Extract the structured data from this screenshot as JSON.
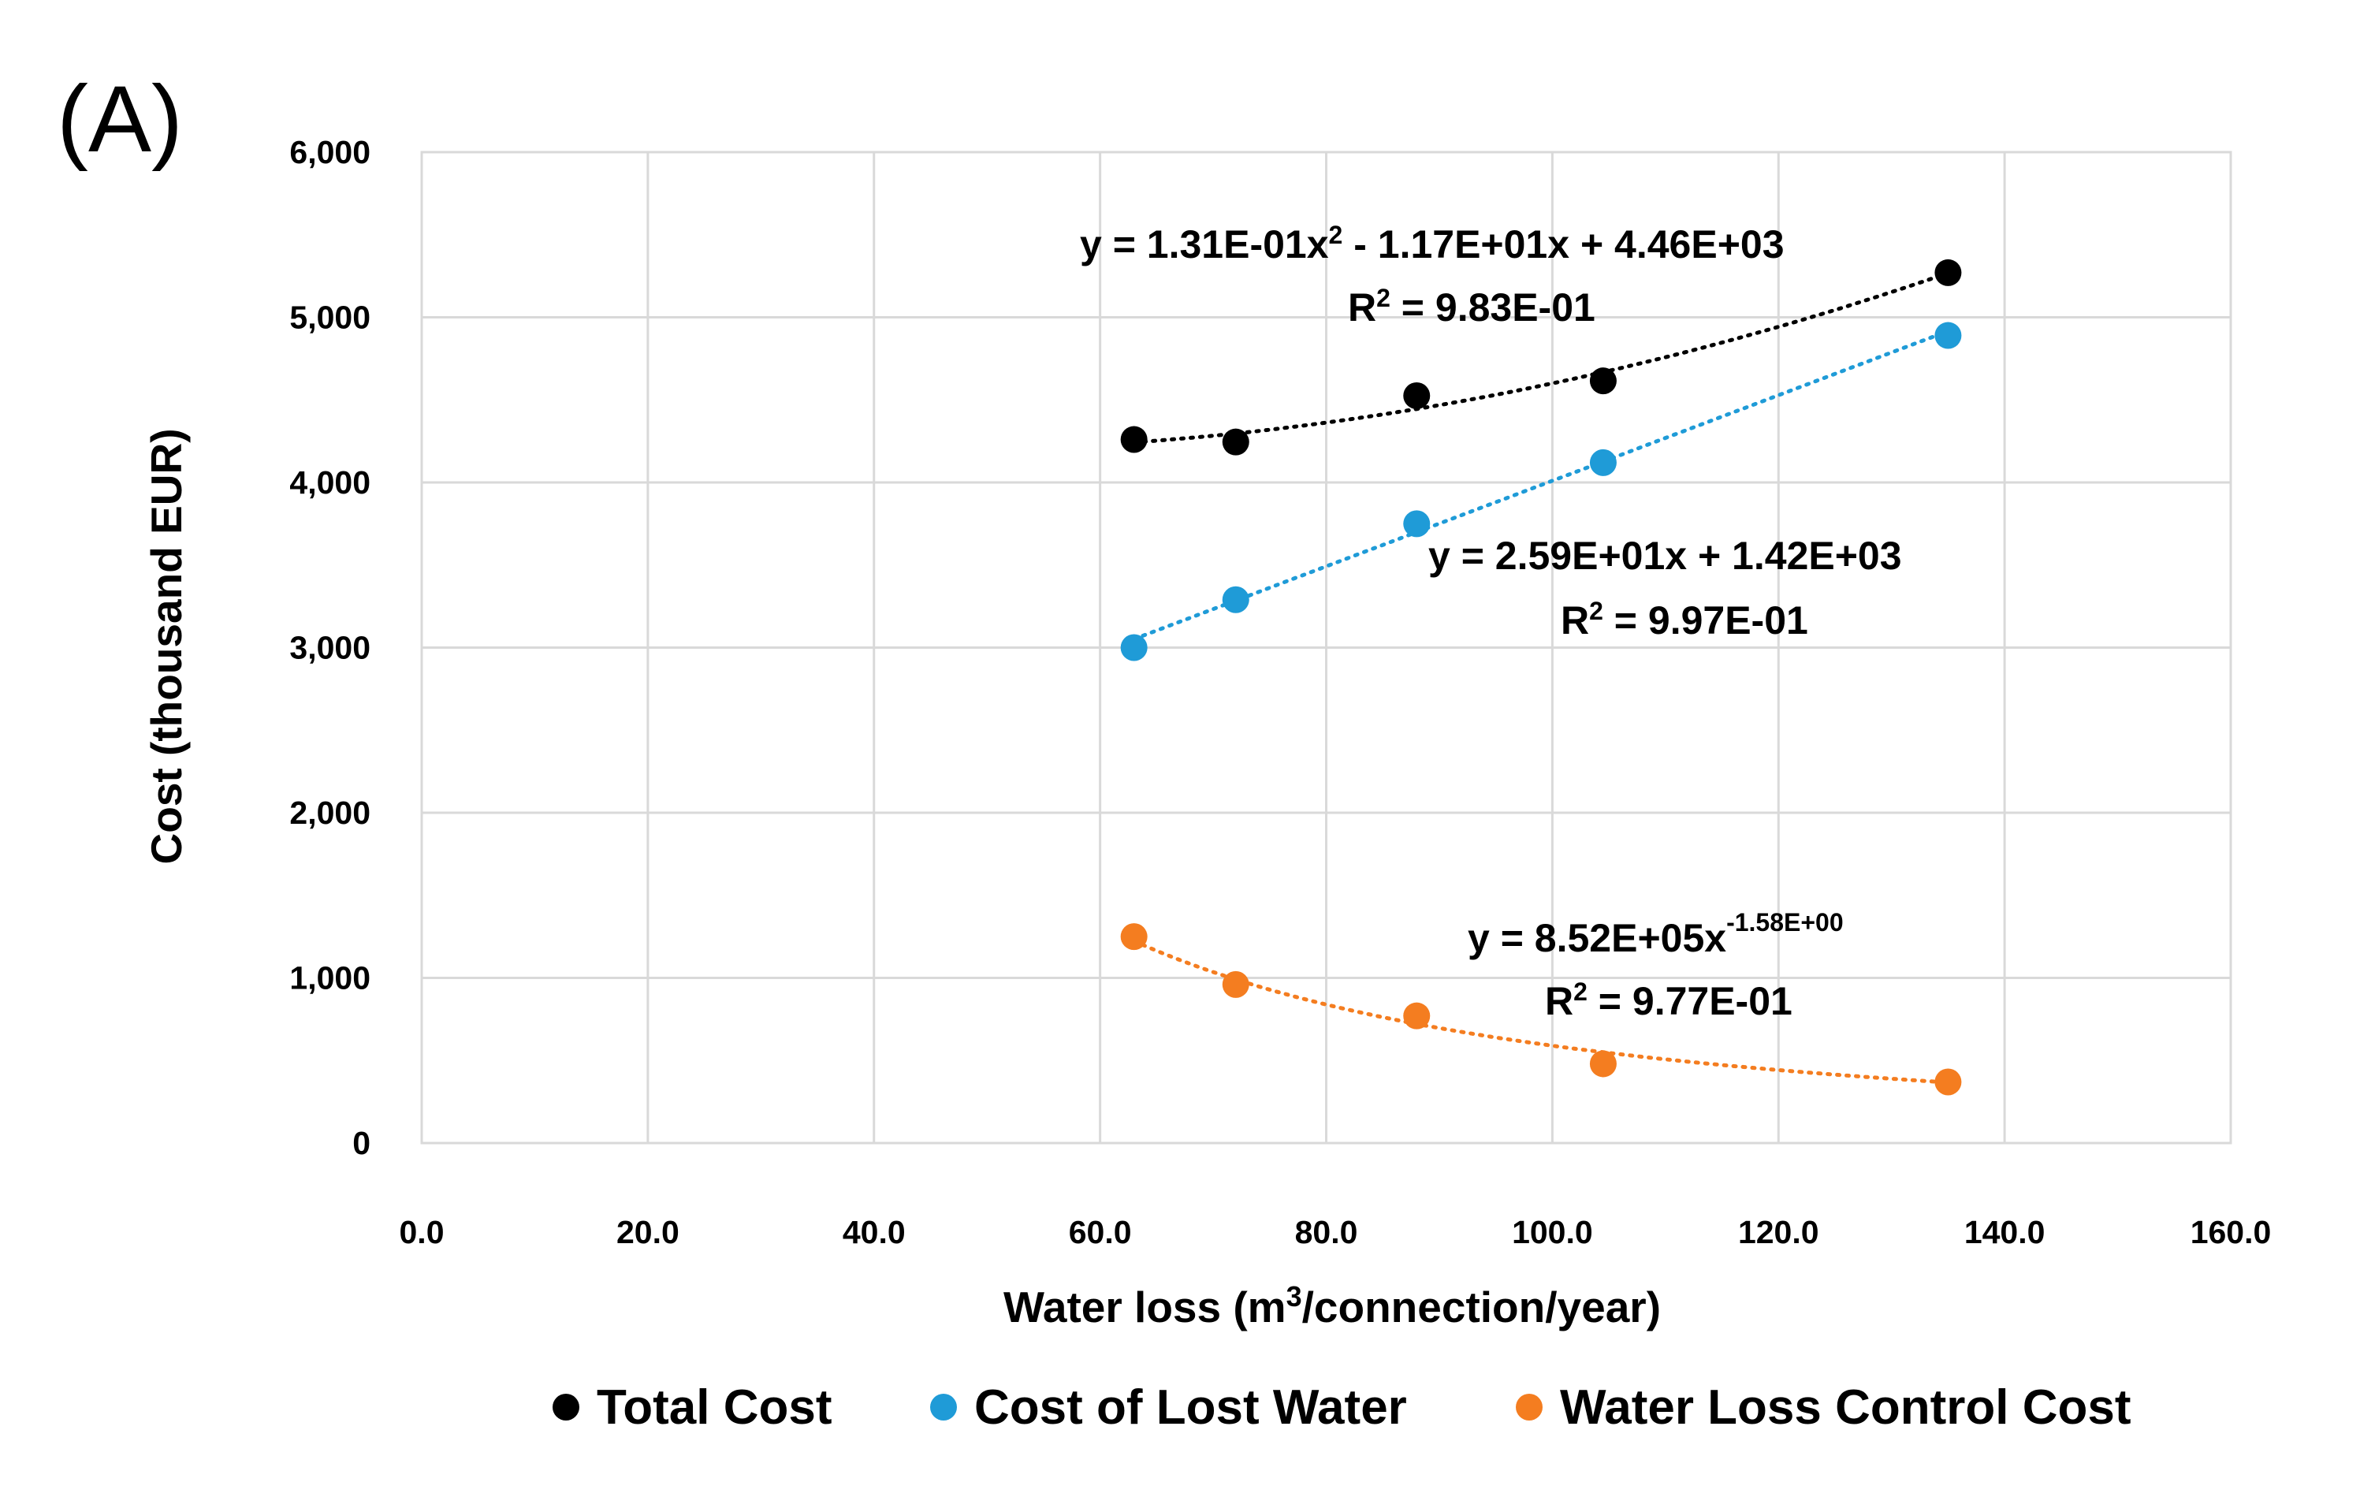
{
  "panel_label": "(A)",
  "chart_data": {
    "type": "scatter",
    "title": "",
    "xlabel": {
      "prefix": "Water loss (m",
      "sup": "3",
      "suffix": "/connection/year)"
    },
    "ylabel": "Cost (thousand EUR)",
    "xlim": [
      0,
      160
    ],
    "ylim": [
      0,
      6000
    ],
    "x_ticks": [
      {
        "value": 0,
        "label": "0.0"
      },
      {
        "value": 20,
        "label": "20.0"
      },
      {
        "value": 40,
        "label": "40.0"
      },
      {
        "value": 60,
        "label": "60.0"
      },
      {
        "value": 80,
        "label": "80.0"
      },
      {
        "value": 100,
        "label": "100.0"
      },
      {
        "value": 120,
        "label": "120.0"
      },
      {
        "value": 140,
        "label": "140.0"
      },
      {
        "value": 160,
        "label": "160.0"
      }
    ],
    "y_ticks": [
      {
        "value": 0,
        "label": "0"
      },
      {
        "value": 1000,
        "label": "1,000"
      },
      {
        "value": 2000,
        "label": "2,000"
      },
      {
        "value": 3000,
        "label": "3,000"
      },
      {
        "value": 4000,
        "label": "4,000"
      },
      {
        "value": 5000,
        "label": "5,000"
      },
      {
        "value": 6000,
        "label": "6,000"
      }
    ],
    "grid": true,
    "legend_position": "bottom",
    "series": [
      {
        "name": "Total Cost",
        "color": "#000000",
        "x": [
          63,
          72,
          88,
          104.5,
          135
        ],
        "y": [
          4260,
          4245,
          4525,
          4615,
          5270
        ],
        "trend": {
          "type": "poly2",
          "a": 0.131,
          "b": -11.7,
          "c": 4460
        },
        "equation": {
          "main": "y = 1.31E-01x",
          "sup": "2",
          "tail": " - 1.17E+01x + 4.46E+03"
        },
        "r2": {
          "r": "R",
          "sup": "2",
          "value": " = 9.83E-01"
        }
      },
      {
        "name": "Cost of Lost Water",
        "color": "#1f9bd7",
        "x": [
          63,
          72,
          88,
          104.5,
          135
        ],
        "y": [
          3000,
          3290,
          3750,
          4120,
          4890
        ],
        "trend": {
          "type": "linear",
          "m": 25.9,
          "b": 1420
        },
        "equation": {
          "main": "y = 2.59E+01x + 1.42E+03",
          "sup": "",
          "tail": ""
        },
        "r2": {
          "r": "R",
          "sup": "2",
          "value": " = 9.97E-01"
        }
      },
      {
        "name": "Water Loss Control Cost",
        "color": "#f47d20",
        "x": [
          63,
          72,
          88,
          104.5,
          135
        ],
        "y": [
          1250,
          960,
          770,
          480,
          370
        ],
        "trend": {
          "type": "power",
          "a": 852000,
          "b": -1.58
        },
        "equation": {
          "main": "y = 8.52E+05x",
          "sup": "-1.58E+00",
          "tail": ""
        },
        "r2": {
          "r": "R",
          "sup": "2",
          "value": " = 9.77E-01"
        }
      }
    ]
  }
}
